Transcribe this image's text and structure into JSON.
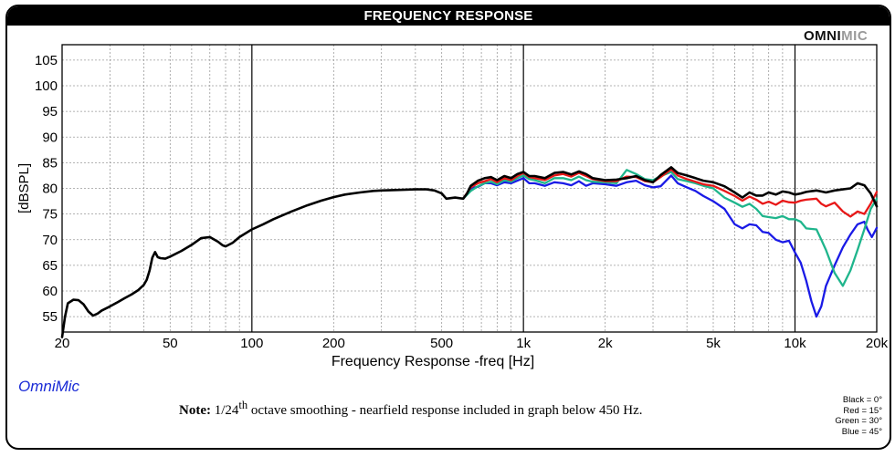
{
  "header": {
    "title": "FREQUENCY RESPONSE"
  },
  "logo": {
    "part1": "OMNI",
    "part2": "MIC"
  },
  "brand": "OmniMic",
  "note": {
    "label": "Note:",
    "pre": "1/24",
    "sup": "th",
    "post": " octave smoothing - nearfield response included in graph below 450 Hz."
  },
  "legend": [
    "Black = 0°",
    "Red = 15°",
    "Green = 30°",
    "Blue = 45°"
  ],
  "colors": {
    "black": "#000000",
    "red": "#e81818",
    "green": "#1fb58c",
    "blue": "#1a1ae6"
  },
  "chart_data": {
    "type": "line",
    "xlabel": "Frequency Response -freq [Hz]",
    "ylabel": "[dBSPL]",
    "xscale": "log",
    "xlim": [
      20,
      20000
    ],
    "ylim": [
      52,
      108
    ],
    "x_ticks": [
      {
        "v": 20,
        "label": "20"
      },
      {
        "v": 50,
        "label": "50"
      },
      {
        "v": 100,
        "label": "100"
      },
      {
        "v": 200,
        "label": "200"
      },
      {
        "v": 500,
        "label": "500"
      },
      {
        "v": 1000,
        "label": "1k"
      },
      {
        "v": 2000,
        "label": "2k"
      },
      {
        "v": 5000,
        "label": "5k"
      },
      {
        "v": 10000,
        "label": "10k"
      },
      {
        "v": 20000,
        "label": "20k"
      }
    ],
    "y_ticks": [
      55,
      60,
      65,
      70,
      75,
      80,
      85,
      90,
      95,
      100,
      105
    ],
    "grid": true,
    "series": [
      {
        "name": "Blue = 45°",
        "color": "#1a1ae6",
        "points": [
          [
            600,
            78
          ],
          [
            640,
            80
          ],
          [
            680,
            80.3
          ],
          [
            720,
            81
          ],
          [
            760,
            81
          ],
          [
            800,
            80.6
          ],
          [
            850,
            81.2
          ],
          [
            900,
            81
          ],
          [
            950,
            81.5
          ],
          [
            1000,
            82
          ],
          [
            1050,
            81
          ],
          [
            1100,
            81
          ],
          [
            1200,
            80.5
          ],
          [
            1300,
            81.2
          ],
          [
            1400,
            81
          ],
          [
            1500,
            80.6
          ],
          [
            1600,
            81.4
          ],
          [
            1700,
            80.5
          ],
          [
            1800,
            81
          ],
          [
            2000,
            80.8
          ],
          [
            2200,
            80.5
          ],
          [
            2400,
            81.2
          ],
          [
            2600,
            81.5
          ],
          [
            2800,
            80.6
          ],
          [
            3000,
            80.2
          ],
          [
            3200,
            80.4
          ],
          [
            3500,
            82.5
          ],
          [
            3700,
            81
          ],
          [
            4000,
            80.2
          ],
          [
            4300,
            79.5
          ],
          [
            4600,
            78.5
          ],
          [
            5000,
            77.5
          ],
          [
            5500,
            76
          ],
          [
            6000,
            73
          ],
          [
            6400,
            72.2
          ],
          [
            6800,
            73
          ],
          [
            7200,
            72.8
          ],
          [
            7600,
            71.5
          ],
          [
            8000,
            71.3
          ],
          [
            8500,
            70
          ],
          [
            9000,
            69.5
          ],
          [
            9500,
            69.8
          ],
          [
            10000,
            67.5
          ],
          [
            10500,
            65.5
          ],
          [
            11000,
            62
          ],
          [
            11500,
            58
          ],
          [
            12000,
            55
          ],
          [
            12500,
            57
          ],
          [
            13000,
            61
          ],
          [
            14000,
            65
          ],
          [
            15000,
            68.5
          ],
          [
            16000,
            71
          ],
          [
            17000,
            73
          ],
          [
            18000,
            73.5
          ],
          [
            18500,
            72
          ],
          [
            19200,
            70.5
          ],
          [
            20000,
            72.3
          ]
        ]
      },
      {
        "name": "Green = 30°",
        "color": "#1fb58c",
        "points": [
          [
            600,
            78
          ],
          [
            640,
            79.5
          ],
          [
            680,
            80.4
          ],
          [
            720,
            81
          ],
          [
            760,
            81.3
          ],
          [
            800,
            80.8
          ],
          [
            850,
            81.6
          ],
          [
            900,
            81.3
          ],
          [
            950,
            82
          ],
          [
            1000,
            82.5
          ],
          [
            1050,
            81.8
          ],
          [
            1100,
            81.6
          ],
          [
            1200,
            81
          ],
          [
            1300,
            82
          ],
          [
            1400,
            82
          ],
          [
            1500,
            81.6
          ],
          [
            1600,
            82.3
          ],
          [
            1700,
            81.6
          ],
          [
            1800,
            81.3
          ],
          [
            2000,
            81.2
          ],
          [
            2200,
            81
          ],
          [
            2400,
            83.6
          ],
          [
            2600,
            82.8
          ],
          [
            2800,
            81.8
          ],
          [
            3000,
            81.6
          ],
          [
            3200,
            82.4
          ],
          [
            3500,
            83.2
          ],
          [
            3700,
            81.8
          ],
          [
            4000,
            81.4
          ],
          [
            4300,
            81
          ],
          [
            4600,
            80.5
          ],
          [
            5000,
            80
          ],
          [
            5500,
            78.2
          ],
          [
            6000,
            77.2
          ],
          [
            6400,
            76.4
          ],
          [
            6800,
            77
          ],
          [
            7200,
            76
          ],
          [
            7600,
            74.6
          ],
          [
            8000,
            74.4
          ],
          [
            8500,
            74.2
          ],
          [
            9000,
            74.6
          ],
          [
            9500,
            74
          ],
          [
            10000,
            74
          ],
          [
            10500,
            73.5
          ],
          [
            11000,
            72.2
          ],
          [
            12000,
            72
          ],
          [
            12500,
            70
          ],
          [
            13000,
            68
          ],
          [
            14000,
            63.5
          ],
          [
            15000,
            61
          ],
          [
            16000,
            64
          ],
          [
            17000,
            68
          ],
          [
            18000,
            72
          ],
          [
            19000,
            76
          ],
          [
            20000,
            78
          ]
        ]
      },
      {
        "name": "Red = 15°",
        "color": "#e81818",
        "points": [
          [
            600,
            78
          ],
          [
            640,
            80.2
          ],
          [
            680,
            81
          ],
          [
            720,
            81.4
          ],
          [
            760,
            81.8
          ],
          [
            800,
            81.2
          ],
          [
            850,
            82
          ],
          [
            900,
            81.6
          ],
          [
            950,
            82.4
          ],
          [
            1000,
            83
          ],
          [
            1050,
            82.2
          ],
          [
            1100,
            82
          ],
          [
            1200,
            81.6
          ],
          [
            1300,
            82.5
          ],
          [
            1400,
            82.8
          ],
          [
            1500,
            82.3
          ],
          [
            1600,
            83
          ],
          [
            1700,
            82.4
          ],
          [
            1800,
            81.8
          ],
          [
            2000,
            81.4
          ],
          [
            2200,
            81.4
          ],
          [
            2400,
            82.3
          ],
          [
            2600,
            82.2
          ],
          [
            2800,
            81.4
          ],
          [
            3000,
            81.2
          ],
          [
            3200,
            82.2
          ],
          [
            3500,
            83.7
          ],
          [
            3700,
            82.5
          ],
          [
            4000,
            81.8
          ],
          [
            4300,
            81.3
          ],
          [
            4600,
            80.8
          ],
          [
            5000,
            80.5
          ],
          [
            5500,
            79.5
          ],
          [
            6000,
            78.5
          ],
          [
            6400,
            77.6
          ],
          [
            6800,
            78.4
          ],
          [
            7200,
            77.8
          ],
          [
            7600,
            77
          ],
          [
            8000,
            77.4
          ],
          [
            8500,
            76.8
          ],
          [
            9000,
            77.6
          ],
          [
            9500,
            77.3
          ],
          [
            10000,
            77.2
          ],
          [
            10500,
            77.6
          ],
          [
            11000,
            77.8
          ],
          [
            12000,
            78
          ],
          [
            12500,
            77
          ],
          [
            13000,
            76.5
          ],
          [
            14000,
            77.2
          ],
          [
            15000,
            75.5
          ],
          [
            16000,
            74.5
          ],
          [
            17000,
            75.5
          ],
          [
            18000,
            75
          ],
          [
            19000,
            77
          ],
          [
            20000,
            79.3
          ]
        ]
      },
      {
        "name": "Black = 0°",
        "color": "#000000",
        "points": [
          [
            20,
            51
          ],
          [
            20.5,
            55
          ],
          [
            21,
            57.6
          ],
          [
            22,
            58.3
          ],
          [
            23,
            58.2
          ],
          [
            24,
            57.4
          ],
          [
            25,
            56
          ],
          [
            26,
            55.2
          ],
          [
            27,
            55.6
          ],
          [
            28,
            56.2
          ],
          [
            30,
            57
          ],
          [
            32,
            57.8
          ],
          [
            34,
            58.6
          ],
          [
            36,
            59.3
          ],
          [
            38,
            60.1
          ],
          [
            40,
            61.2
          ],
          [
            41,
            62.2
          ],
          [
            42,
            64
          ],
          [
            43,
            66.5
          ],
          [
            44,
            67.6
          ],
          [
            45,
            66.6
          ],
          [
            46,
            66.4
          ],
          [
            48,
            66.3
          ],
          [
            50,
            66.7
          ],
          [
            55,
            67.8
          ],
          [
            60,
            69
          ],
          [
            65,
            70.3
          ],
          [
            70,
            70.5
          ],
          [
            75,
            69.6
          ],
          [
            78,
            68.9
          ],
          [
            80,
            68.7
          ],
          [
            85,
            69.4
          ],
          [
            90,
            70.5
          ],
          [
            100,
            72
          ],
          [
            110,
            73
          ],
          [
            120,
            74
          ],
          [
            140,
            75.5
          ],
          [
            160,
            76.7
          ],
          [
            180,
            77.6
          ],
          [
            200,
            78.3
          ],
          [
            220,
            78.8
          ],
          [
            250,
            79.2
          ],
          [
            280,
            79.5
          ],
          [
            300,
            79.6
          ],
          [
            350,
            79.7
          ],
          [
            400,
            79.8
          ],
          [
            440,
            79.8
          ],
          [
            470,
            79.6
          ],
          [
            500,
            79
          ],
          [
            520,
            78
          ],
          [
            560,
            78.2
          ],
          [
            600,
            78
          ],
          [
            620,
            79
          ],
          [
            640,
            80.5
          ],
          [
            680,
            81.5
          ],
          [
            720,
            82
          ],
          [
            760,
            82.2
          ],
          [
            800,
            81.6
          ],
          [
            850,
            82.4
          ],
          [
            900,
            82
          ],
          [
            950,
            82.8
          ],
          [
            1000,
            83.2
          ],
          [
            1050,
            82.4
          ],
          [
            1100,
            82.4
          ],
          [
            1200,
            82
          ],
          [
            1300,
            83
          ],
          [
            1400,
            83.2
          ],
          [
            1500,
            82.7
          ],
          [
            1600,
            83.3
          ],
          [
            1700,
            82.8
          ],
          [
            1800,
            82
          ],
          [
            2000,
            81.6
          ],
          [
            2200,
            81.7
          ],
          [
            2400,
            82
          ],
          [
            2600,
            82.4
          ],
          [
            2800,
            81.6
          ],
          [
            3000,
            81.2
          ],
          [
            3200,
            82.6
          ],
          [
            3500,
            84.1
          ],
          [
            3700,
            83
          ],
          [
            4000,
            82.5
          ],
          [
            4300,
            82
          ],
          [
            4600,
            81.5
          ],
          [
            5000,
            81.2
          ],
          [
            5500,
            80.4
          ],
          [
            6000,
            79.2
          ],
          [
            6400,
            78.2
          ],
          [
            6800,
            79.2
          ],
          [
            7200,
            78.6
          ],
          [
            7600,
            78.6
          ],
          [
            8000,
            79.2
          ],
          [
            8500,
            78.8
          ],
          [
            9000,
            79.4
          ],
          [
            9500,
            79.2
          ],
          [
            10000,
            78.8
          ],
          [
            10500,
            79
          ],
          [
            11000,
            79.3
          ],
          [
            12000,
            79.6
          ],
          [
            12500,
            79.4
          ],
          [
            13000,
            79.2
          ],
          [
            14000,
            79.6
          ],
          [
            15000,
            79.8
          ],
          [
            16000,
            80
          ],
          [
            17000,
            81
          ],
          [
            18000,
            80.6
          ],
          [
            19000,
            79
          ],
          [
            20000,
            76.5
          ]
        ]
      }
    ]
  }
}
